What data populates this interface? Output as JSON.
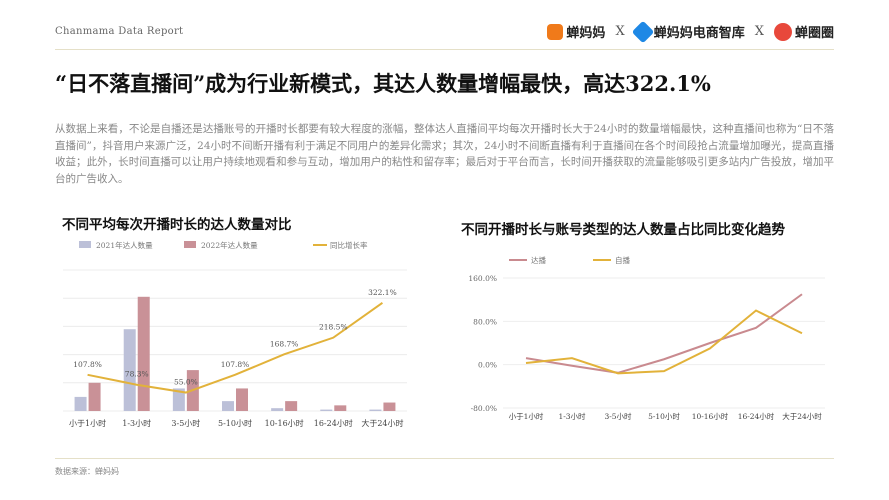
{
  "header": {
    "report_label": "Chanmama Data Report",
    "logos": [
      {
        "name": "蝉妈妈",
        "color": "#f07a1a"
      },
      {
        "name": "蝉妈妈电商智库",
        "color": "#1e88e5"
      },
      {
        "name": "蝉圈圈",
        "color": "#e8483b"
      }
    ],
    "separator": "X"
  },
  "headline": "“日不落直播间”成为行业新模式，其达人数量增幅最快，高达322.1%",
  "paragraph": "从数据上来看，不论是自播还是达播账号的开播时长都要有较大程度的涨幅，整体达人直播间平均每次开播时长大于24小时的数量增幅最快，这种直播间也称为“日不落直播间”，抖音用户来源广泛，24小时不间断开播有利于满足不同用户的差异化需求；其次，24小时不间断直播有利于直播间在各个时间段抢占流量增加曝光，提高直播收益；此外，长时间直播可以让用户持续地观看和参与互动，增加用户的粘性和留存率；最后对于平台而言，长时间开播获取的流量能够吸引更多站内广告投放，增加平台的广告收入。",
  "source": "数据来源：蝉妈妈",
  "chart_data": [
    {
      "type": "bar",
      "title": "不同平均每次开播时长的达人数量对比",
      "categories": [
        "小于1小时",
        "1-3小时",
        "3-5小时",
        "5-10小时",
        "10-16小时",
        "16-24小时",
        "大于24小时"
      ],
      "series": [
        {
          "name": "2021年达人数量",
          "kind": "bar",
          "color": "#bcc0d8",
          "values": [
            10,
            58,
            16,
            7,
            2,
            1,
            1
          ]
        },
        {
          "name": "2022年达人数量",
          "kind": "bar",
          "color": "#c99197",
          "values": [
            20,
            81,
            29,
            16,
            7,
            4,
            6
          ]
        },
        {
          "name": "同比增长率",
          "kind": "line",
          "color": "#e2b23a",
          "values": [
            107.8,
            78.3,
            55.0,
            107.8,
            168.7,
            218.5,
            322.1
          ]
        }
      ],
      "data_labels": [
        "107.8%",
        "78.3%",
        "55.0%",
        "107.8%",
        "168.7%",
        "218.5%",
        "322.1%"
      ],
      "grid": true,
      "legend": "top"
    },
    {
      "type": "line",
      "title": "不同开播时长与账号类型的达人数量占比同比变化趋势",
      "categories": [
        "小于1小时",
        "1-3小时",
        "3-5小时",
        "5-10小时",
        "10-16小时",
        "16-24小时",
        "大于24小时"
      ],
      "series": [
        {
          "name": "达播",
          "color": "#c98a8f",
          "values": [
            12,
            -2,
            -15,
            10,
            40,
            68,
            130
          ]
        },
        {
          "name": "自播",
          "color": "#e2b23a",
          "values": [
            3,
            12,
            -16,
            -12,
            30,
            100,
            58
          ]
        }
      ],
      "y_ticks": [
        "-80.0%",
        "0.0%",
        "80.0%",
        "160.0%"
      ],
      "ylim": [
        -80,
        160
      ],
      "grid": true,
      "legend": "top-left"
    }
  ]
}
